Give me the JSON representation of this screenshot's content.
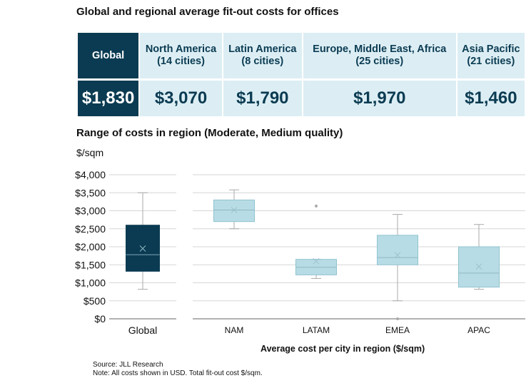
{
  "title": "Global and regional average fit-out costs for offices",
  "table": {
    "headers": [
      {
        "name": "Global",
        "cities": ""
      },
      {
        "name": "North America",
        "cities": "(14 cities)"
      },
      {
        "name": "Latin America",
        "cities": "(8 cities)"
      },
      {
        "name": "Europe, Middle East, Africa",
        "cities": "(25 cities)"
      },
      {
        "name": "Asia Pacific",
        "cities": "(21 cities)"
      }
    ],
    "values": [
      "$1,830",
      "$3,070",
      "$1,790",
      "$1,970",
      "$1,460"
    ]
  },
  "colors": {
    "dark": "#0b3b52",
    "light_cell": "#dceef4",
    "light_box": "#b8dce5"
  },
  "chart_data": {
    "type": "box",
    "title": "Range of costs in region (Moderate, Medium quality)",
    "ylabel": "$/sqm",
    "xlabel": "Average cost per city in region ($/sqm)",
    "ylim": [
      0,
      4000
    ],
    "yticks": [
      "$0",
      "$500",
      "$1,000",
      "$1,500",
      "$2,000",
      "$2,500",
      "$3,000",
      "$3,500",
      "$4,000"
    ],
    "grid": true,
    "categories": [
      "Global",
      "NAM",
      "LATAM",
      "EMEA",
      "APAC"
    ],
    "boxes": [
      {
        "min": 820,
        "q1": 1320,
        "median": 1780,
        "mean": 1950,
        "q3": 2600,
        "max": 3500,
        "outliers": []
      },
      {
        "min": 2500,
        "q1": 2700,
        "median": 3020,
        "mean": 3020,
        "q3": 3300,
        "max": 3580,
        "outliers": []
      },
      {
        "min": 1120,
        "q1": 1220,
        "median": 1430,
        "mean": 1600,
        "q3": 1650,
        "max": 1650,
        "outliers": [
          3130
        ]
      },
      {
        "min": 500,
        "q1": 1500,
        "median": 1700,
        "mean": 1770,
        "q3": 2320,
        "max": 2900,
        "outliers": [
          0
        ]
      },
      {
        "min": 820,
        "q1": 880,
        "median": 1270,
        "mean": 1450,
        "q3": 2000,
        "max": 2620,
        "outliers": []
      }
    ]
  },
  "footer": {
    "source": "Source: JLL Research",
    "note": "Note: All costs shown in USD. Total fit-out cost $/sqm."
  }
}
